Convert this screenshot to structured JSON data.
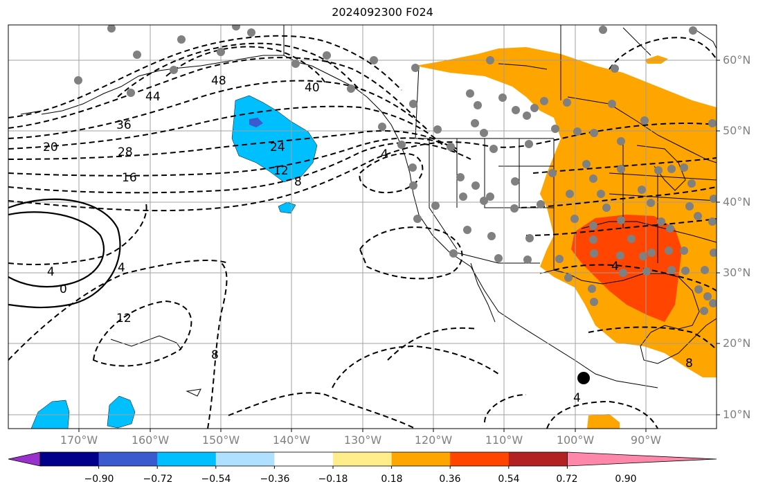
{
  "title": "2024092300 F024",
  "lat_labels": [
    "60°N",
    "50°N",
    "40°N",
    "30°N",
    "20°N",
    "10°N"
  ],
  "lon_labels": [
    "170°W",
    "160°W",
    "150°W",
    "140°W",
    "130°W",
    "120°W",
    "110°W",
    "100°W",
    "90°W"
  ],
  "contour_labels": [
    "48",
    "44",
    "40",
    "36",
    "28",
    "20",
    "16",
    "24",
    "12",
    "8",
    "4",
    "4",
    "0",
    "4",
    "12",
    "8",
    "4",
    "4",
    "8"
  ],
  "colorbar": {
    "tick_labels": [
      "−0.90",
      "−0.72",
      "−0.54",
      "−0.36",
      "−0.18",
      "0.18",
      "0.36",
      "0.54",
      "0.72",
      "0.90"
    ],
    "colors": [
      "#9932cc",
      "#00008b",
      "#3a5acd",
      "#00bfff",
      "#b0e0ff",
      "#ffffff",
      "#ffec8b",
      "#ffa500",
      "#ff4500",
      "#b22222",
      "#ff88aa"
    ]
  }
}
